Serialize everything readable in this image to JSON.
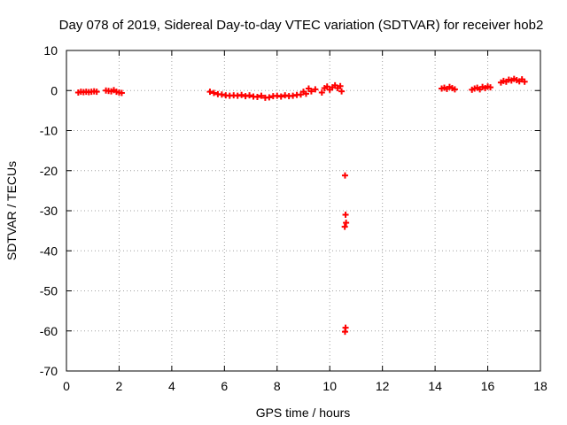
{
  "chart_data": {
    "type": "scatter",
    "title": "Day 078 of 2019, Sidereal Day-to-day VTEC variation (SDTVAR) for receiver hob2",
    "xlabel": "GPS time / hours",
    "ylabel": "SDTVAR / TECUs",
    "xlim": [
      0,
      18
    ],
    "ylim": [
      -70,
      10
    ],
    "xticks": [
      0,
      2,
      4,
      6,
      8,
      10,
      12,
      14,
      16,
      18
    ],
    "yticks": [
      10,
      0,
      -10,
      -20,
      -30,
      -40,
      -50,
      -60,
      -70
    ],
    "xtick_labels": [
      "0",
      "2",
      "4",
      "6",
      "8",
      "10",
      "12",
      "14",
      "16",
      "18"
    ],
    "ytick_labels": [
      "10",
      "0",
      "-10",
      "-20",
      "-30",
      "-40",
      "-50",
      "-60",
      "-70"
    ],
    "grid": true,
    "marker": "plus",
    "series": [
      {
        "name": "SDTVAR",
        "color": "#ff0000",
        "x": [
          0.45,
          0.55,
          0.65,
          0.75,
          0.85,
          0.95,
          1.05,
          1.15,
          1.5,
          1.6,
          1.7,
          1.8,
          1.9,
          2.0,
          2.1,
          5.45,
          5.6,
          5.75,
          5.9,
          6.05,
          6.2,
          6.35,
          6.5,
          6.65,
          6.8,
          6.95,
          7.1,
          7.25,
          7.4,
          7.55,
          7.7,
          7.85,
          8.0,
          8.15,
          8.3,
          8.45,
          8.6,
          8.75,
          8.9,
          9.0,
          9.1,
          9.2,
          9.3,
          9.45,
          9.7,
          9.8,
          9.9,
          10.0,
          10.1,
          10.2,
          10.3,
          10.4,
          10.45,
          10.58,
          10.6,
          10.62,
          10.57,
          10.6,
          10.58,
          14.25,
          14.35,
          14.45,
          14.55,
          14.65,
          14.75,
          15.4,
          15.5,
          15.6,
          15.7,
          15.8,
          15.9,
          16.0,
          16.1,
          16.5,
          16.6,
          16.7,
          16.8,
          16.9,
          17.0,
          17.1,
          17.2,
          17.3,
          17.4
        ],
        "y": [
          -0.5,
          -0.3,
          -0.4,
          -0.3,
          -0.4,
          -0.3,
          -0.2,
          -0.3,
          0.0,
          -0.1,
          -0.2,
          0.1,
          -0.3,
          -0.5,
          -0.6,
          -0.3,
          -0.6,
          -0.9,
          -1.0,
          -1.2,
          -1.3,
          -1.2,
          -1.3,
          -1.1,
          -1.4,
          -1.2,
          -1.5,
          -1.6,
          -1.3,
          -1.8,
          -1.7,
          -1.4,
          -1.3,
          -1.5,
          -1.2,
          -1.4,
          -1.3,
          -1.1,
          -1.0,
          -0.3,
          -0.8,
          0.5,
          -0.2,
          0.3,
          -0.5,
          0.6,
          1.0,
          0.2,
          0.8,
          1.3,
          0.6,
          1.1,
          -0.2,
          -21.2,
          -31.0,
          -33.0,
          -34.0,
          -59.2,
          -60.2,
          0.5,
          0.7,
          0.4,
          0.9,
          0.6,
          0.3,
          0.2,
          0.5,
          0.7,
          0.3,
          0.9,
          0.6,
          1.0,
          0.8,
          2.0,
          2.4,
          2.2,
          2.7,
          2.5,
          2.9,
          2.6,
          2.3,
          2.8,
          2.2
        ]
      }
    ]
  }
}
